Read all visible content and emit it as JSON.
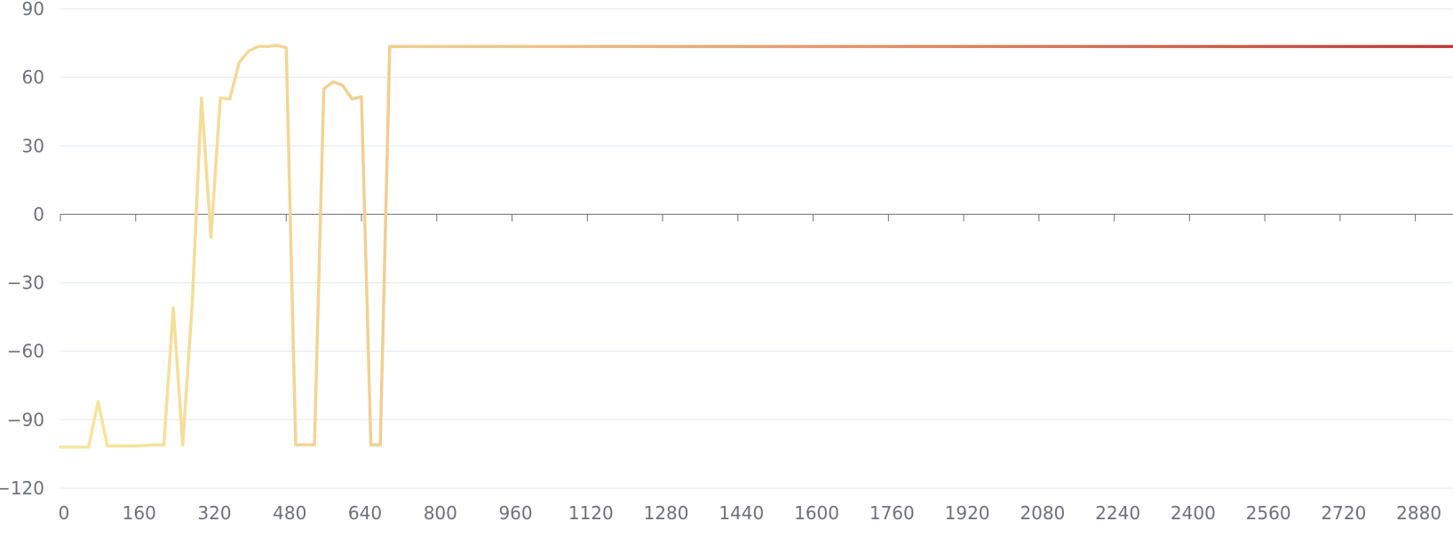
{
  "chart_data": {
    "type": "line",
    "title": "",
    "xlabel": "",
    "ylabel": "",
    "xlim": [
      0,
      2960
    ],
    "ylim": [
      -120,
      90
    ],
    "x_ticks": [
      0,
      160,
      320,
      480,
      640,
      800,
      960,
      1120,
      1280,
      1440,
      1600,
      1760,
      1920,
      2080,
      2240,
      2400,
      2560,
      2720,
      2880
    ],
    "y_ticks": [
      -120,
      -90,
      -60,
      -30,
      0,
      30,
      60,
      90
    ],
    "tick_labels": {
      "x": [
        "0",
        "160",
        "320",
        "480",
        "640",
        "800",
        "960",
        "1120",
        "1280",
        "1440",
        "1600",
        "1760",
        "1920",
        "2080",
        "2240",
        "2400",
        "2560",
        "2720",
        "2880"
      ],
      "y": [
        "−120",
        "−90",
        "−60",
        "−30",
        "0",
        "30",
        "60",
        "90"
      ]
    },
    "grid": true,
    "legend": "none",
    "gradient_colors": [
      "#f7e7a0",
      "#edc48c",
      "#d98060",
      "#b83a3a"
    ],
    "series": [
      {
        "x": [
          0,
          20,
          40,
          60,
          80,
          100,
          120,
          140,
          160,
          180,
          200,
          220,
          240,
          260,
          280,
          300,
          320,
          340,
          360,
          380,
          400,
          420,
          440,
          460,
          480,
          500,
          520,
          540,
          560,
          580,
          600,
          620,
          640,
          660,
          680,
          700,
          800,
          1000,
          1200,
          1400,
          1600,
          1800,
          2000,
          2200,
          2400,
          2600,
          2800,
          2960
        ],
        "values": [
          -102,
          -102,
          -102,
          -102,
          -82,
          -101.5,
          -101.5,
          -101.5,
          -101.5,
          -101.3,
          -101,
          -101,
          -41,
          -101,
          -40,
          51,
          -10,
          51,
          50.5,
          66.5,
          71.5,
          73.5,
          73.5,
          74,
          73,
          -101,
          -101,
          -101,
          55,
          58,
          56.5,
          50.5,
          51.5,
          -101,
          -101,
          73.5,
          73.5,
          73.5,
          73.5,
          73.5,
          73.5,
          73.5,
          73.5,
          73.5,
          73.5,
          73.5,
          73.5,
          73.5
        ]
      }
    ]
  }
}
